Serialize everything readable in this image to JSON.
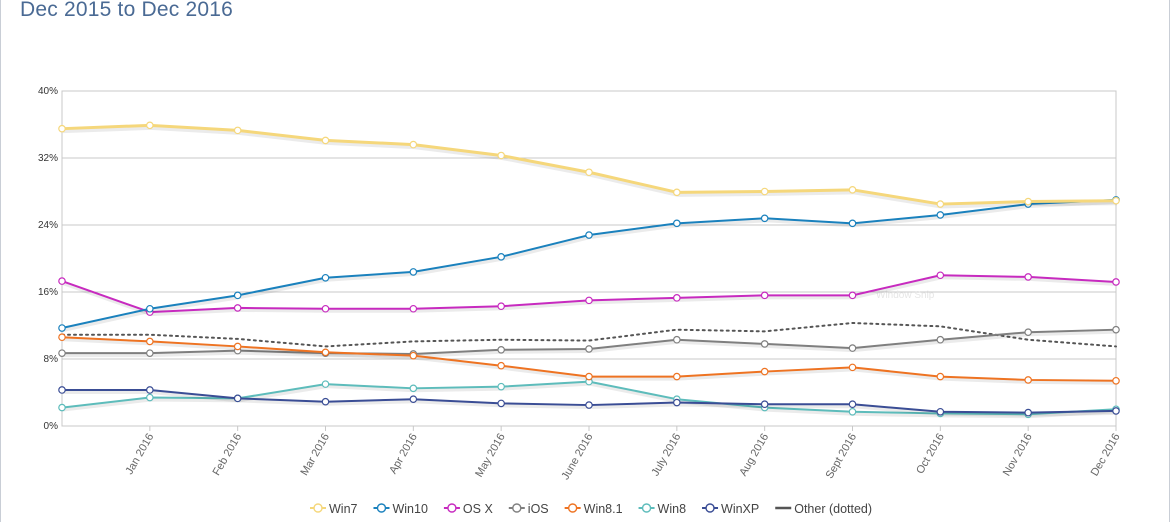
{
  "header": {
    "title": "Dec 2015 to Dec 2016"
  },
  "watermark": "Window Snip",
  "chart_data": {
    "type": "line",
    "title": "Dec 2015 to Dec 2016",
    "xlabel": "",
    "ylabel": "",
    "ylim": [
      0,
      40
    ],
    "y_ticks": [
      "0%",
      "8%",
      "16%",
      "24%",
      "32%",
      "40%"
    ],
    "y_tick_values": [
      0,
      8,
      16,
      24,
      32,
      40
    ],
    "categories": [
      "",
      "Jan 2016",
      "Feb 2016",
      "Mar 2016",
      "Apr 2016",
      "May 2016",
      "June 2016",
      "July 2016",
      "Aug 2016",
      "Sept 2016",
      "Oct 2016",
      "Nov 2016",
      "Dec 2016"
    ],
    "grid": "horizontal",
    "legend_position": "bottom",
    "series": [
      {
        "name": "Win7",
        "color": "#f5d77b",
        "marker": true,
        "width": 3,
        "values": [
          35.5,
          35.9,
          35.3,
          34.1,
          33.6,
          32.3,
          30.3,
          27.9,
          28.0,
          28.2,
          26.5,
          26.8,
          26.9
        ]
      },
      {
        "name": "Win10",
        "color": "#1a81bd",
        "marker": true,
        "width": 2,
        "values": [
          11.7,
          14.0,
          15.6,
          17.7,
          18.4,
          20.2,
          22.8,
          24.2,
          24.8,
          24.2,
          25.2,
          26.5,
          27.0
        ]
      },
      {
        "name": "OS X",
        "color": "#c72abf",
        "marker": true,
        "width": 2,
        "values": [
          17.3,
          13.6,
          14.1,
          14.0,
          14.0,
          14.3,
          15.0,
          15.3,
          15.6,
          15.6,
          18.0,
          17.8,
          17.2
        ]
      },
      {
        "name": "iOS",
        "color": "#7f7f7f",
        "marker": true,
        "width": 2,
        "values": [
          8.7,
          8.7,
          9.0,
          8.7,
          8.6,
          9.1,
          9.2,
          10.3,
          9.8,
          9.3,
          10.3,
          11.2,
          11.5
        ]
      },
      {
        "name": "Win8.1",
        "color": "#ee7322",
        "marker": true,
        "width": 2,
        "values": [
          10.6,
          10.1,
          9.5,
          8.8,
          8.4,
          7.2,
          5.9,
          5.9,
          6.5,
          7.0,
          5.9,
          5.5,
          5.4
        ]
      },
      {
        "name": "Win8",
        "color": "#5dbcbb",
        "marker": true,
        "width": 2,
        "values": [
          2.2,
          3.4,
          3.3,
          5.0,
          4.5,
          4.7,
          5.3,
          3.2,
          2.2,
          1.7,
          1.5,
          1.4,
          2.0
        ]
      },
      {
        "name": "WinXP",
        "color": "#3a4d95",
        "marker": true,
        "width": 2,
        "values": [
          4.3,
          4.3,
          3.3,
          2.9,
          3.2,
          2.7,
          2.5,
          2.8,
          2.6,
          2.6,
          1.7,
          1.6,
          1.8
        ]
      },
      {
        "name": "Other (dotted)",
        "color": "#555555",
        "marker": false,
        "width": 2,
        "dotted": true,
        "values": [
          10.9,
          10.9,
          10.4,
          9.5,
          10.1,
          10.3,
          10.2,
          11.5,
          11.3,
          12.3,
          11.9,
          10.3,
          9.5
        ]
      }
    ]
  }
}
